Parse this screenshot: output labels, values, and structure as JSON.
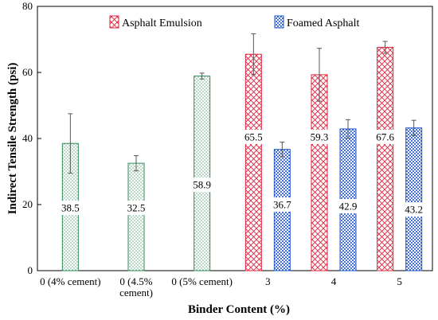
{
  "chart_data": {
    "type": "bar",
    "title": "",
    "xlabel": "Binder Content (%)",
    "ylabel": "Indirect Tensile Strength (psi)",
    "ylim": [
      0,
      80
    ],
    "yticks": [
      0,
      20,
      40,
      60,
      80
    ],
    "grid": false,
    "legend_position": "top",
    "categories": [
      [
        "0 (4% cement)"
      ],
      [
        "0 (4.5%",
        "cement)"
      ],
      [
        "0 (5% cement)"
      ],
      [
        "3"
      ],
      [
        "4"
      ],
      [
        "5"
      ]
    ],
    "cement_only": {
      "values": [
        38.5,
        32.5,
        58.9
      ],
      "error": [
        9.0,
        2.3,
        0.9
      ],
      "color": "#2e8b57"
    },
    "series": [
      {
        "name": "Asphalt Emulsion",
        "values": [
          null,
          null,
          null,
          65.5,
          59.3,
          67.6
        ],
        "error": [
          null,
          null,
          null,
          6.2,
          8.0,
          1.8
        ],
        "color": "#e0223b",
        "pattern": "crosshatch"
      },
      {
        "name": "Foamed Asphalt",
        "values": [
          null,
          null,
          null,
          36.7,
          42.9,
          43.2
        ],
        "error": [
          null,
          null,
          null,
          2.2,
          2.8,
          2.3
        ],
        "color": "#1e56c9",
        "pattern": "dots"
      }
    ],
    "data_labels": [
      {
        "text": "38.5",
        "y": 19.0
      },
      {
        "text": "32.5",
        "y": 19.0
      },
      {
        "text": "58.9",
        "y": 26.0
      },
      {
        "text": "65.5",
        "y": 40.5
      },
      {
        "text": "36.7",
        "y": 20.0
      },
      {
        "text": "59.3",
        "y": 40.5
      },
      {
        "text": "42.9",
        "y": 19.5
      },
      {
        "text": "67.6",
        "y": 40.5
      },
      {
        "text": "43.2",
        "y": 18.5
      }
    ]
  }
}
